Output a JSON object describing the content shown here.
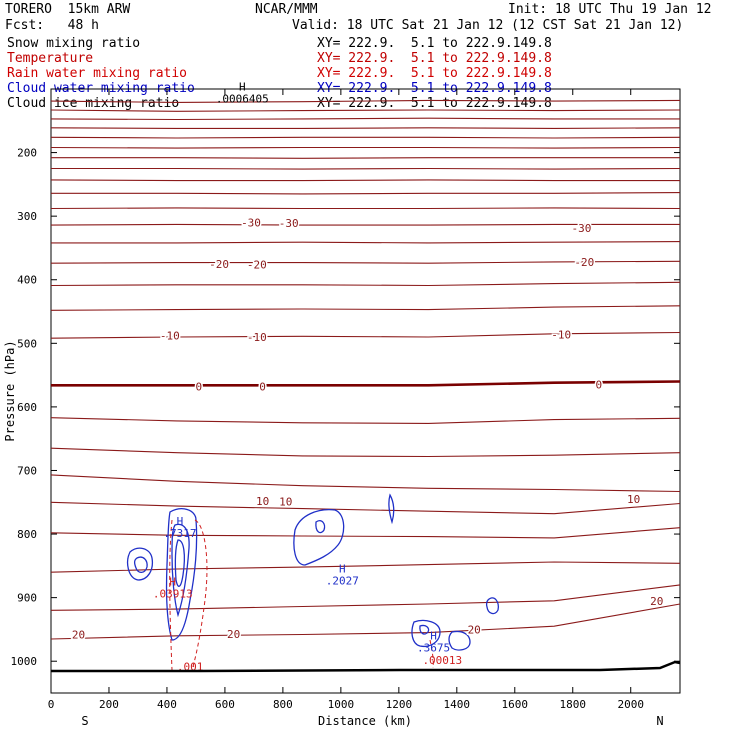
{
  "header": {
    "model": "TORERO  15km ARW",
    "center": "NCAR/MMM",
    "init": "Init: 18 UTC Thu 19 Jan 12",
    "fcst": "Fcst:   48 h",
    "valid": "Valid: 18 UTC Sat 21 Jan 12 (12 CST Sat 21 Jan 12)"
  },
  "legend": [
    {
      "field": "Snow mixing ratio",
      "xy": "XY= 222.9.  5.1 to 222.9.149.8",
      "label_color": "#000000",
      "xy_color": "#000000"
    },
    {
      "field": "Temperature",
      "xy": "XY= 222.9.  5.1 to 222.9.149.8",
      "label_color": "#c00000",
      "xy_color": "#c00000"
    },
    {
      "field": "Rain water mixing ratio",
      "xy": "XY= 222.9.  5.1 to 222.9.149.8",
      "label_color": "#d00000",
      "xy_color": "#d00000"
    },
    {
      "field": "Cloud water mixing ratio",
      "xy": "XY= 222.9.  5.1 to 222.9.149.8",
      "label_color": "#0000c0",
      "xy_color": "#0000c0"
    },
    {
      "field": "Cloud ice mixing ratio",
      "xy": "XY= 222.9.  5.1 to 222.9.149.8",
      "label_color": "#000000",
      "xy_color": "#000000"
    }
  ],
  "chart_data": {
    "type": "line",
    "xlabel": "Distance (km)",
    "ylabel": "Pressure (hPa)",
    "xlim": [
      0,
      2170
    ],
    "ylim": [
      1050,
      100
    ],
    "x_ticks": [
      0,
      200,
      400,
      600,
      800,
      1000,
      1200,
      1400,
      1600,
      1800,
      2000
    ],
    "y_ticks": [
      200,
      300,
      400,
      500,
      600,
      700,
      800,
      900,
      1000
    ],
    "endpoint_labels": {
      "left": "S",
      "right": "N"
    },
    "colors": {
      "temperature": "#8b1a1a",
      "zero_isotherm": "#7a0000",
      "cloud_water": "#2030c8",
      "rain": "#d02020",
      "surface": "#000000"
    },
    "temperature_isotherms": [
      {
        "p": [
          119,
          121,
          120,
          118,
          119,
          118
        ]
      },
      {
        "p": [
          133,
          135,
          134,
          133,
          134,
          133
        ]
      },
      {
        "p": [
          147,
          148,
          147,
          146,
          147,
          147
        ]
      },
      {
        "p": [
          161,
          162,
          162,
          161,
          162,
          161
        ]
      },
      {
        "p": [
          176,
          177,
          176,
          176,
          177,
          176
        ]
      },
      {
        "p": [
          192,
          193,
          192,
          192,
          193,
          192
        ]
      },
      {
        "p": [
          208,
          208,
          209,
          208,
          208,
          208
        ]
      },
      {
        "p": [
          225,
          225,
          226,
          225,
          226,
          225
        ]
      },
      {
        "p": [
          243,
          244,
          244,
          243,
          244,
          244
        ]
      },
      {
        "p": [
          264,
          264,
          265,
          264,
          264,
          263
        ]
      },
      {
        "p": [
          288,
          287,
          288,
          288,
          287,
          288
        ]
      },
      {
        "p": [
          314,
          313,
          314,
          314,
          313,
          313
        ]
      },
      {
        "p": [
          342,
          342,
          341,
          342,
          341,
          340
        ]
      },
      {
        "p": [
          374,
          373,
          373,
          374,
          372,
          371
        ]
      },
      {
        "p": [
          409,
          408,
          408,
          409,
          406,
          404
        ]
      },
      {
        "p": [
          448,
          447,
          446,
          447,
          443,
          441
        ]
      },
      {
        "p": [
          492,
          490,
          489,
          490,
          485,
          483
        ]
      },
      {
        "p": [
          566,
          566,
          566,
          566,
          562,
          560
        ]
      },
      {
        "p": [
          617,
          622,
          625,
          626,
          620,
          618
        ]
      },
      {
        "p": [
          665,
          672,
          677,
          678,
          676,
          672
        ]
      },
      {
        "p": [
          707,
          717,
          724,
          728,
          730,
          733
        ]
      },
      {
        "p": [
          750,
          756,
          760,
          764,
          768,
          752
        ]
      },
      {
        "p": [
          798,
          802,
          803,
          804,
          806,
          790
        ]
      },
      {
        "p": [
          860,
          855,
          852,
          848,
          844,
          846
        ]
      },
      {
        "p": [
          920,
          918,
          914,
          910,
          905,
          880
        ]
      },
      {
        "p": [
          965,
          960,
          958,
          955,
          945,
          910
        ]
      }
    ],
    "isotherm_x": [
      0,
      434,
      868,
      1302,
      1736,
      2170
    ],
    "temperature_labels": [
      {
        "text": "-30",
        "x": 690,
        "p": 310
      },
      {
        "text": "-30",
        "x": 820,
        "p": 311
      },
      {
        "text": "-30",
        "x": 1830,
        "p": 319
      },
      {
        "text": "-20",
        "x": 580,
        "p": 375
      },
      {
        "text": "-20",
        "x": 710,
        "p": 376
      },
      {
        "text": "-20",
        "x": 1840,
        "p": 372
      },
      {
        "text": "-10",
        "x": 410,
        "p": 488
      },
      {
        "text": "-10",
        "x": 710,
        "p": 490
      },
      {
        "text": "-10",
        "x": 1760,
        "p": 486
      },
      {
        "text": "0",
        "x": 510,
        "p": 568
      },
      {
        "text": "0",
        "x": 730,
        "p": 568
      },
      {
        "text": "0",
        "x": 1890,
        "p": 565
      },
      {
        "text": "10",
        "x": 730,
        "p": 748
      },
      {
        "text": "10",
        "x": 810,
        "p": 749
      },
      {
        "text": "10",
        "x": 2010,
        "p": 745
      },
      {
        "text": "20",
        "x": 95,
        "p": 958
      },
      {
        "text": "20",
        "x": 630,
        "p": 957
      },
      {
        "text": "20",
        "x": 1460,
        "p": 950
      },
      {
        "text": "20",
        "x": 2090,
        "p": 905
      }
    ],
    "extrema_labels": [
      {
        "mark": "H",
        "value": ".0006405",
        "x": 660,
        "p": 112,
        "color": "#000000"
      },
      {
        "mark": "H",
        "value": ".7317",
        "x": 445,
        "p": 795,
        "color": "#2030c8"
      },
      {
        "mark": "H",
        "value": ".03913",
        "x": 420,
        "p": 890,
        "color": "#d02020"
      },
      {
        "mark": "H",
        "value": ".2027",
        "x": 1005,
        "p": 870,
        "color": "#2030c8"
      },
      {
        "mark": "H",
        "value": ".3675",
        "x": 1320,
        "p": 975,
        "color": "#2030c8"
      },
      {
        "mark": "",
        "value": ".00013",
        "x": 1350,
        "p": 995,
        "color": "#d02020"
      },
      {
        "mark": "",
        "value": ".001",
        "x": 480,
        "p": 1005,
        "color": "#d02020"
      }
    ]
  }
}
